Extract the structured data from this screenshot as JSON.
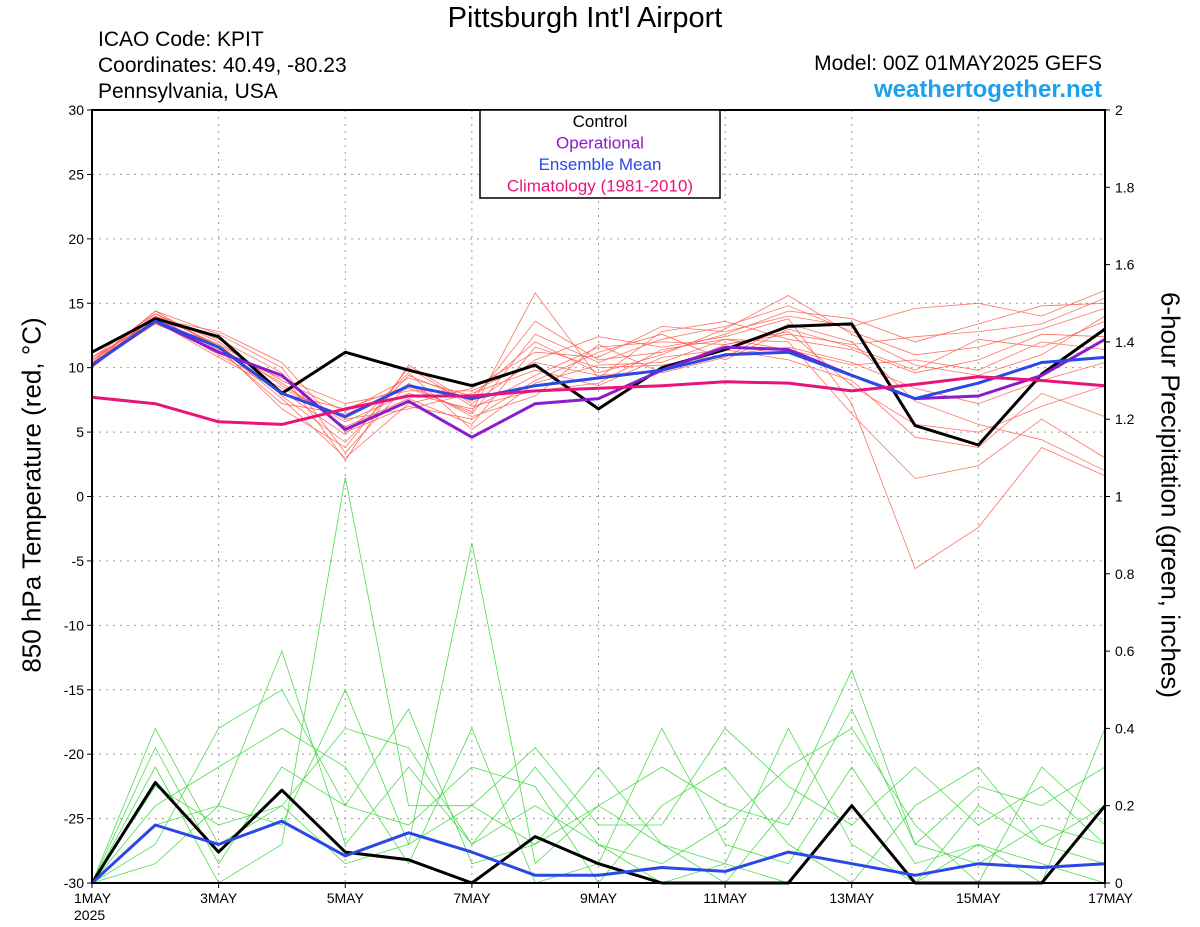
{
  "header": {
    "title": "Pittsburgh Int'l Airport",
    "icao": "ICAO Code: KPIT",
    "coordinates": "Coordinates: 40.49, -80.23",
    "region": "Pennsylvania, USA",
    "model": "Model: 00Z 01MAY2025 GEFS",
    "site": "weathertogether.net"
  },
  "colors": {
    "members_temp": "#ff5a4a",
    "members_precip": "#3cd83c",
    "control": "#000000",
    "operational": "#8a1ccc",
    "ensemble_mean": "#2a48e8",
    "climatology": "#e8147a"
  },
  "chart_data": {
    "type": "line",
    "title": "Pittsburgh Int'l Airport",
    "ylabel": "850 hPa Temperature (red, °C)",
    "y2label": "6-hour Precipitation (green, inches)",
    "ylim": [
      -30,
      30
    ],
    "y2lim": [
      0,
      2
    ],
    "yticks": [
      "30",
      "25",
      "20",
      "15",
      "10",
      "5",
      "0",
      "-5",
      "-10",
      "-15",
      "-20",
      "-25",
      "-30"
    ],
    "y2ticks": [
      "2",
      "1.8",
      "1.6",
      "1.4",
      "1.2",
      "1",
      "0.8",
      "0.6",
      "0.4",
      "0.2",
      "0"
    ],
    "xticks": [
      "1MAY",
      "3MAY",
      "5MAY",
      "7MAY",
      "9MAY",
      "11MAY",
      "13MAY",
      "15MAY",
      "17MAY"
    ],
    "xtick_year": "2025",
    "x_start": "2025-05-01",
    "x_end": "2025-05-17",
    "grid": true,
    "legend": {
      "position": "top-center",
      "entries": [
        "Control",
        "Operational",
        "Ensemble Mean",
        "Climatology (1981-2010)"
      ]
    },
    "series": [
      {
        "name": "Control",
        "axis": "left",
        "x": [
          "2025-05-01",
          "2025-05-02",
          "2025-05-03",
          "2025-05-04",
          "2025-05-05",
          "2025-05-06",
          "2025-05-07",
          "2025-05-08",
          "2025-05-09",
          "2025-05-10",
          "2025-05-11",
          "2025-05-12",
          "2025-05-13",
          "2025-05-14",
          "2025-05-15",
          "2025-05-16",
          "2025-05-17"
        ],
        "values": [
          11.2,
          13.8,
          12.4,
          8.0,
          11.2,
          9.8,
          8.6,
          10.2,
          6.8,
          10.0,
          11.4,
          13.2,
          13.4,
          5.5,
          4.0,
          9.5,
          13.0
        ]
      },
      {
        "name": "Operational",
        "axis": "left",
        "x": [
          "2025-05-01",
          "2025-05-02",
          "2025-05-03",
          "2025-05-04",
          "2025-05-05",
          "2025-05-06",
          "2025-05-07",
          "2025-05-08",
          "2025-05-09",
          "2025-05-10",
          "2025-05-11",
          "2025-05-12",
          "2025-05-13",
          "2025-05-14",
          "2025-05-15",
          "2025-05-16",
          "2025-05-17"
        ],
        "values": [
          10.2,
          13.6,
          11.2,
          9.4,
          5.2,
          7.4,
          4.6,
          7.2,
          7.6,
          9.8,
          11.6,
          11.4,
          9.4,
          7.6,
          7.8,
          9.4,
          12.2
        ]
      },
      {
        "name": "Ensemble Mean",
        "axis": "left",
        "x": [
          "2025-05-01",
          "2025-05-02",
          "2025-05-03",
          "2025-05-04",
          "2025-05-05",
          "2025-05-06",
          "2025-05-07",
          "2025-05-08",
          "2025-05-09",
          "2025-05-10",
          "2025-05-11",
          "2025-05-12",
          "2025-05-13",
          "2025-05-14",
          "2025-05-15",
          "2025-05-16",
          "2025-05-17"
        ],
        "values": [
          10.2,
          13.6,
          11.6,
          8.0,
          6.2,
          8.6,
          7.6,
          8.6,
          9.2,
          9.8,
          11.0,
          11.2,
          9.4,
          7.6,
          8.8,
          10.4,
          10.8
        ]
      },
      {
        "name": "Climatology (1981-2010)",
        "axis": "left",
        "x": [
          "2025-05-01",
          "2025-05-02",
          "2025-05-03",
          "2025-05-04",
          "2025-05-05",
          "2025-05-06",
          "2025-05-07",
          "2025-05-08",
          "2025-05-09",
          "2025-05-10",
          "2025-05-11",
          "2025-05-12",
          "2025-05-13",
          "2025-05-14",
          "2025-05-15",
          "2025-05-16",
          "2025-05-17"
        ],
        "values": [
          7.7,
          7.2,
          5.8,
          5.6,
          6.8,
          7.8,
          7.8,
          8.2,
          8.4,
          8.6,
          8.9,
          8.8,
          8.2,
          8.7,
          9.3,
          9.0,
          8.6
        ]
      },
      {
        "name": "Control",
        "axis": "right",
        "x": [
          "2025-05-01",
          "2025-05-02",
          "2025-05-03",
          "2025-05-04",
          "2025-05-05",
          "2025-05-06",
          "2025-05-07",
          "2025-05-08",
          "2025-05-09",
          "2025-05-10",
          "2025-05-11",
          "2025-05-12",
          "2025-05-13",
          "2025-05-14",
          "2025-05-15",
          "2025-05-16",
          "2025-05-17"
        ],
        "values": [
          0.0,
          0.26,
          0.08,
          0.24,
          0.08,
          0.06,
          0.0,
          0.12,
          0.05,
          0.0,
          0.0,
          0.0,
          0.2,
          0.0,
          0.0,
          0.0,
          0.2
        ]
      },
      {
        "name": "Ensemble Mean",
        "axis": "right",
        "x": [
          "2025-05-01",
          "2025-05-02",
          "2025-05-03",
          "2025-05-04",
          "2025-05-05",
          "2025-05-06",
          "2025-05-07",
          "2025-05-08",
          "2025-05-09",
          "2025-05-10",
          "2025-05-11",
          "2025-05-12",
          "2025-05-13",
          "2025-05-14",
          "2025-05-15",
          "2025-05-16",
          "2025-05-17"
        ],
        "values": [
          0.0,
          0.15,
          0.1,
          0.16,
          0.07,
          0.13,
          0.08,
          0.02,
          0.02,
          0.04,
          0.03,
          0.08,
          0.05,
          0.02,
          0.05,
          0.04,
          0.05
        ]
      }
    ],
    "ensemble_temperature_members": [
      [
        10.0,
        14.2,
        12.0,
        8.6,
        5.8,
        8.0,
        6.8,
        9.4,
        11.6,
        12.0,
        11.8,
        12.6,
        11.8,
        12.4,
        12.8,
        13.4,
        15.4
      ],
      [
        10.6,
        13.4,
        11.6,
        7.6,
        3.0,
        7.2,
        8.4,
        11.2,
        10.8,
        13.2,
        12.8,
        14.0,
        13.2,
        14.6,
        15.0,
        14.0,
        16.0
      ],
      [
        10.2,
        14.0,
        11.8,
        9.0,
        6.6,
        9.2,
        7.8,
        12.0,
        9.6,
        11.0,
        13.0,
        15.6,
        12.6,
        10.2,
        9.4,
        11.0,
        14.0
      ],
      [
        10.8,
        13.6,
        10.8,
        8.2,
        4.8,
        9.6,
        5.2,
        8.8,
        10.2,
        10.4,
        12.2,
        12.0,
        6.4,
        1.4,
        2.4,
        6.0,
        3.0
      ],
      [
        10.4,
        14.4,
        12.6,
        10.0,
        3.4,
        8.8,
        6.2,
        7.8,
        11.8,
        9.6,
        10.8,
        13.4,
        12.0,
        7.4,
        5.6,
        4.4,
        2.0
      ],
      [
        10.0,
        13.8,
        11.0,
        8.4,
        6.0,
        6.8,
        8.0,
        9.8,
        8.6,
        10.8,
        11.4,
        10.6,
        9.0,
        4.6,
        3.8,
        8.0,
        6.2
      ],
      [
        10.6,
        14.0,
        12.2,
        9.6,
        2.8,
        10.2,
        7.2,
        10.6,
        12.4,
        11.6,
        12.4,
        13.8,
        7.2,
        -5.6,
        -2.4,
        3.8,
        1.6
      ],
      [
        10.2,
        13.4,
        11.4,
        7.2,
        6.4,
        8.4,
        6.6,
        15.8,
        9.2,
        12.8,
        13.6,
        12.2,
        11.4,
        9.6,
        10.6,
        12.6,
        12.4
      ],
      [
        10.8,
        14.2,
        11.6,
        8.8,
        5.4,
        7.6,
        5.6,
        11.6,
        10.0,
        10.2,
        11.0,
        11.6,
        10.4,
        8.4,
        7.2,
        9.0,
        10.4
      ],
      [
        10.4,
        13.6,
        12.4,
        7.8,
        4.2,
        9.4,
        7.4,
        13.6,
        10.6,
        11.2,
        12.6,
        14.4,
        13.8,
        12.0,
        13.4,
        14.8,
        15.0
      ],
      [
        10.0,
        14.0,
        11.2,
        9.2,
        7.2,
        8.2,
        8.2,
        10.4,
        9.4,
        9.8,
        11.8,
        12.8,
        8.6,
        5.6,
        5.0,
        7.0,
        8.6
      ],
      [
        10.6,
        13.8,
        12.8,
        10.4,
        5.0,
        7.0,
        6.0,
        9.0,
        11.2,
        12.6,
        10.6,
        13.0,
        11.6,
        9.8,
        12.2,
        11.6,
        13.6
      ],
      [
        10.2,
        14.4,
        11.6,
        6.8,
        3.8,
        10.0,
        7.0,
        8.2,
        8.8,
        11.4,
        12.2,
        11.4,
        10.2,
        10.6,
        9.8,
        12.0,
        11.4
      ],
      [
        10.8,
        13.6,
        11.8,
        8.0,
        6.8,
        8.6,
        6.4,
        12.6,
        10.4,
        12.2,
        13.2,
        14.8,
        12.8,
        11.0,
        11.6,
        13.0,
        14.6
      ]
    ],
    "ensemble_precipitation_members": [
      [
        0.0,
        0.4,
        0.1,
        0.2,
        0.05,
        0.1,
        0.88,
        0.05,
        0.2,
        0.1,
        0.05,
        0.0,
        0.2,
        0.0,
        0.1,
        0.05,
        0.0
      ],
      [
        0.0,
        0.15,
        0.2,
        0.6,
        0.1,
        0.3,
        0.1,
        0.2,
        0.1,
        0.0,
        0.05,
        0.4,
        0.1,
        0.0,
        0.2,
        0.1,
        0.2
      ],
      [
        0.0,
        0.3,
        0.0,
        0.1,
        1.05,
        0.2,
        0.2,
        0.1,
        0.3,
        0.1,
        0.0,
        0.2,
        0.55,
        0.1,
        0.05,
        0.15,
        0.1
      ],
      [
        0.0,
        0.2,
        0.3,
        0.4,
        0.3,
        0.05,
        0.4,
        0.0,
        0.05,
        0.4,
        0.1,
        0.05,
        0.3,
        0.05,
        0.1,
        0.0,
        0.4
      ],
      [
        0.0,
        0.1,
        0.4,
        0.5,
        0.2,
        0.15,
        0.3,
        0.25,
        0.0,
        0.2,
        0.3,
        0.1,
        0.0,
        0.2,
        0.3,
        0.1,
        0.05
      ],
      [
        0.0,
        0.25,
        0.15,
        0.2,
        0.4,
        0.35,
        0.1,
        0.3,
        0.1,
        0.05,
        0.15,
        0.3,
        0.4,
        0.15,
        0.0,
        0.3,
        0.15
      ],
      [
        0.0,
        0.35,
        0.05,
        0.3,
        0.2,
        0.45,
        0.05,
        0.1,
        0.2,
        0.3,
        0.2,
        0.15,
        0.45,
        0.1,
        0.25,
        0.2,
        0.3
      ],
      [
        0.0,
        0.05,
        0.2,
        0.15,
        0.5,
        0.1,
        0.2,
        0.35,
        0.15,
        0.15,
        0.4,
        0.25,
        0.15,
        0.3,
        0.15,
        0.25,
        0.1
      ]
    ]
  }
}
